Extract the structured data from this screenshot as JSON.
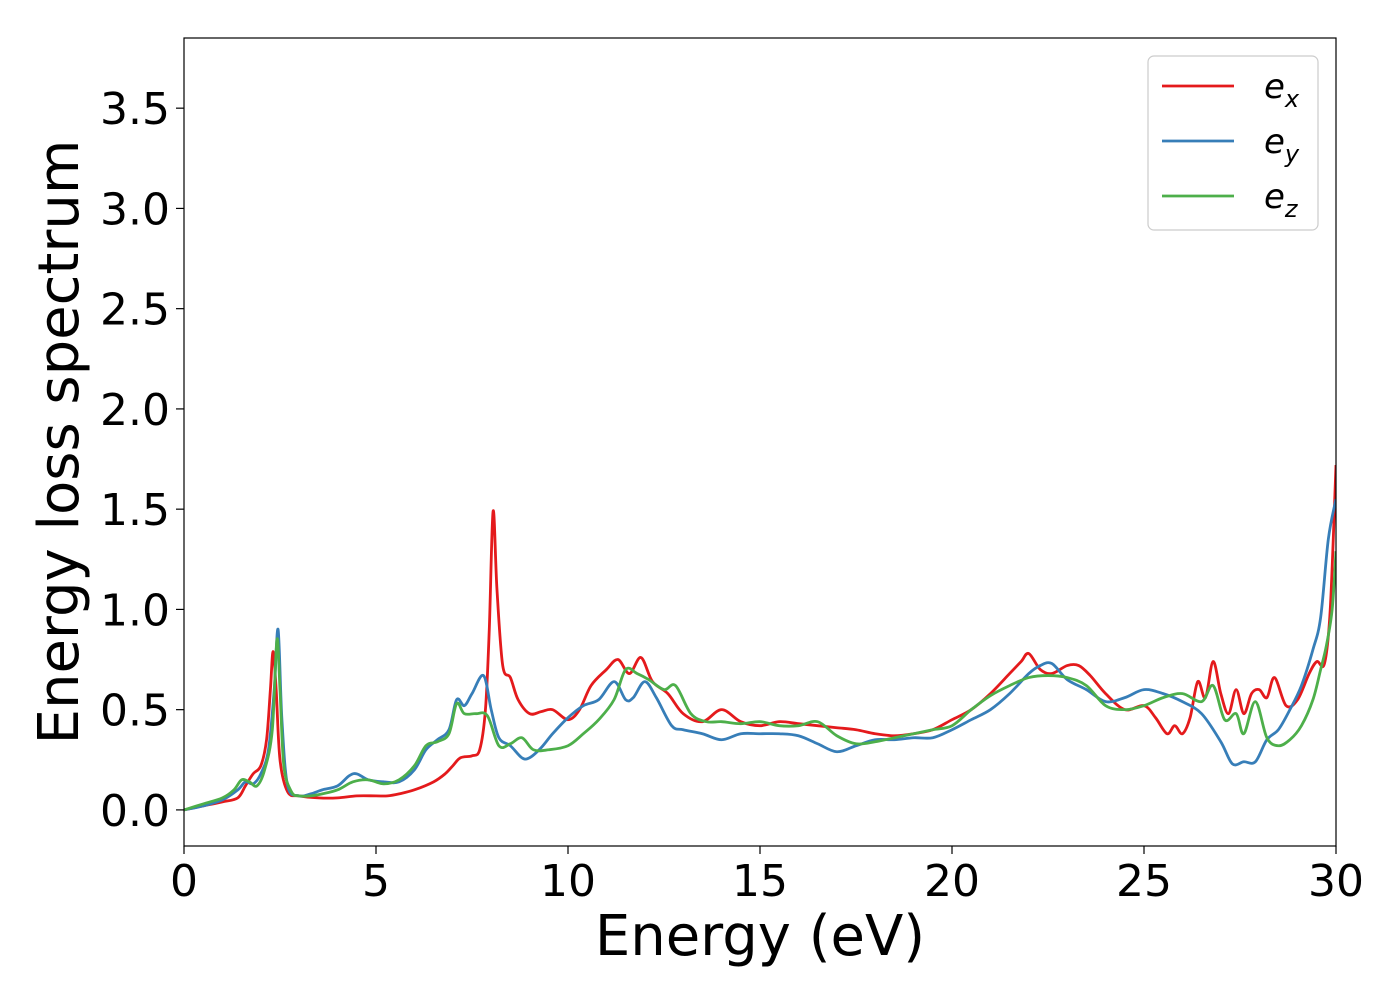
{
  "chart_data": {
    "type": "line",
    "xlabel": "Energy (eV)",
    "ylabel": "Energy loss spectrum",
    "xlim": [
      0,
      30
    ],
    "ylim": [
      -0.18,
      3.85
    ],
    "xticks": [
      0,
      5,
      10,
      15,
      20,
      25,
      30
    ],
    "xtick_labels": [
      "0",
      "5",
      "10",
      "15",
      "20",
      "25",
      "30"
    ],
    "yticks": [
      0.0,
      0.5,
      1.0,
      1.5,
      2.0,
      2.5,
      3.0,
      3.5
    ],
    "ytick_labels": [
      "0.0",
      "0.5",
      "1.0",
      "1.5",
      "2.0",
      "2.5",
      "3.0",
      "3.5"
    ],
    "grid": false,
    "legend_position": "top-right",
    "series": [
      {
        "name": "e_x",
        "legend_base": "e",
        "legend_sub": "x",
        "color": "#e41a1c",
        "x": [
          0,
          0.5,
          1.0,
          1.4,
          1.6,
          1.8,
          2.0,
          2.15,
          2.25,
          2.32,
          2.4,
          2.5,
          2.7,
          3.0,
          3.5,
          4.0,
          4.5,
          5.0,
          5.3,
          5.6,
          6.0,
          6.5,
          6.8,
          7.0,
          7.2,
          7.5,
          7.7,
          7.85,
          7.95,
          8.05,
          8.15,
          8.3,
          8.5,
          8.7,
          9.0,
          9.3,
          9.6,
          10.0,
          10.3,
          10.6,
          11.0,
          11.3,
          11.6,
          11.9,
          12.2,
          12.6,
          13.0,
          13.5,
          14.0,
          14.5,
          15.0,
          15.5,
          16.0,
          16.5,
          17.0,
          17.5,
          18.0,
          18.5,
          19.0,
          19.5,
          20.0,
          20.5,
          21.0,
          21.5,
          21.8,
          22.0,
          22.3,
          22.6,
          23.0,
          23.3,
          23.6,
          24.0,
          24.5,
          25.0,
          25.3,
          25.6,
          25.8,
          26.0,
          26.2,
          26.4,
          26.6,
          26.8,
          27.0,
          27.2,
          27.4,
          27.6,
          27.8,
          28.0,
          28.2,
          28.4,
          28.7,
          29.0,
          29.3,
          29.5,
          29.7,
          29.85,
          30.0
        ],
        "y": [
          0.0,
          0.02,
          0.04,
          0.06,
          0.12,
          0.18,
          0.22,
          0.35,
          0.6,
          0.79,
          0.6,
          0.25,
          0.09,
          0.07,
          0.06,
          0.06,
          0.07,
          0.07,
          0.07,
          0.08,
          0.1,
          0.14,
          0.18,
          0.22,
          0.26,
          0.27,
          0.3,
          0.5,
          0.9,
          1.49,
          1.1,
          0.72,
          0.66,
          0.55,
          0.48,
          0.49,
          0.5,
          0.45,
          0.5,
          0.62,
          0.7,
          0.75,
          0.68,
          0.76,
          0.64,
          0.58,
          0.48,
          0.44,
          0.5,
          0.44,
          0.42,
          0.44,
          0.43,
          0.42,
          0.41,
          0.4,
          0.38,
          0.37,
          0.38,
          0.4,
          0.45,
          0.5,
          0.58,
          0.68,
          0.74,
          0.78,
          0.7,
          0.68,
          0.72,
          0.72,
          0.67,
          0.58,
          0.5,
          0.52,
          0.46,
          0.38,
          0.42,
          0.38,
          0.46,
          0.64,
          0.56,
          0.74,
          0.58,
          0.48,
          0.6,
          0.48,
          0.58,
          0.6,
          0.56,
          0.66,
          0.52,
          0.55,
          0.68,
          0.74,
          0.73,
          1.0,
          1.72
        ]
      },
      {
        "name": "e_y",
        "legend_base": "e",
        "legend_sub": "y",
        "color": "#377eb8",
        "x": [
          0,
          0.5,
          1.0,
          1.4,
          1.6,
          1.8,
          2.0,
          2.2,
          2.35,
          2.45,
          2.55,
          2.7,
          3.0,
          3.3,
          3.6,
          4.0,
          4.3,
          4.5,
          4.8,
          5.2,
          5.6,
          6.0,
          6.3,
          6.6,
          6.9,
          7.1,
          7.3,
          7.5,
          7.8,
          8.0,
          8.2,
          8.5,
          8.8,
          9.0,
          9.3,
          9.6,
          10.0,
          10.4,
          10.8,
          11.2,
          11.5,
          11.7,
          12.0,
          12.3,
          12.7,
          13.0,
          13.5,
          14.0,
          14.5,
          15.0,
          15.5,
          16.0,
          16.5,
          17.0,
          17.5,
          18.0,
          18.5,
          19.0,
          19.5,
          20.0,
          20.5,
          21.0,
          21.5,
          22.0,
          22.3,
          22.6,
          23.0,
          23.5,
          24.0,
          24.5,
          25.0,
          25.5,
          26.0,
          26.5,
          27.0,
          27.3,
          27.6,
          27.9,
          28.2,
          28.5,
          28.8,
          29.1,
          29.4,
          29.6,
          29.8,
          30.0
        ],
        "y": [
          0.0,
          0.02,
          0.05,
          0.1,
          0.14,
          0.13,
          0.18,
          0.3,
          0.6,
          0.9,
          0.45,
          0.12,
          0.07,
          0.08,
          0.1,
          0.12,
          0.17,
          0.18,
          0.15,
          0.14,
          0.14,
          0.2,
          0.3,
          0.35,
          0.4,
          0.55,
          0.52,
          0.58,
          0.67,
          0.5,
          0.36,
          0.32,
          0.26,
          0.26,
          0.31,
          0.38,
          0.46,
          0.52,
          0.55,
          0.64,
          0.55,
          0.56,
          0.64,
          0.56,
          0.42,
          0.4,
          0.38,
          0.35,
          0.38,
          0.38,
          0.38,
          0.37,
          0.33,
          0.29,
          0.32,
          0.35,
          0.35,
          0.36,
          0.36,
          0.4,
          0.45,
          0.5,
          0.58,
          0.68,
          0.72,
          0.73,
          0.65,
          0.6,
          0.54,
          0.56,
          0.6,
          0.58,
          0.54,
          0.48,
          0.34,
          0.23,
          0.24,
          0.24,
          0.35,
          0.4,
          0.5,
          0.62,
          0.8,
          0.96,
          1.35,
          1.55
        ]
      },
      {
        "name": "e_z",
        "legend_base": "e",
        "legend_sub": "z",
        "color": "#4daf4a",
        "x": [
          0,
          0.5,
          1.0,
          1.3,
          1.5,
          1.7,
          1.9,
          2.1,
          2.3,
          2.42,
          2.5,
          2.6,
          2.8,
          3.0,
          3.3,
          3.6,
          4.0,
          4.4,
          4.8,
          5.2,
          5.6,
          6.0,
          6.3,
          6.6,
          6.9,
          7.1,
          7.3,
          7.6,
          7.9,
          8.2,
          8.5,
          8.8,
          9.1,
          9.5,
          10.0,
          10.4,
          10.8,
          11.2,
          11.5,
          11.8,
          12.1,
          12.5,
          12.8,
          13.2,
          13.6,
          14.0,
          14.5,
          15.0,
          15.5,
          16.0,
          16.5,
          17.0,
          17.5,
          18.0,
          18.5,
          19.0,
          19.5,
          20.0,
          20.5,
          21.0,
          21.5,
          22.0,
          22.5,
          23.0,
          23.5,
          24.0,
          24.5,
          25.0,
          25.5,
          26.0,
          26.5,
          26.8,
          27.1,
          27.4,
          27.6,
          27.9,
          28.2,
          28.5,
          28.8,
          29.1,
          29.4,
          29.6,
          29.75,
          29.9,
          30.0
        ],
        "y": [
          0.0,
          0.03,
          0.06,
          0.1,
          0.15,
          0.14,
          0.12,
          0.2,
          0.4,
          0.85,
          0.6,
          0.22,
          0.09,
          0.07,
          0.07,
          0.08,
          0.1,
          0.14,
          0.15,
          0.13,
          0.15,
          0.22,
          0.32,
          0.34,
          0.38,
          0.53,
          0.48,
          0.48,
          0.47,
          0.32,
          0.33,
          0.36,
          0.3,
          0.3,
          0.32,
          0.38,
          0.45,
          0.55,
          0.7,
          0.68,
          0.65,
          0.6,
          0.62,
          0.48,
          0.44,
          0.44,
          0.43,
          0.44,
          0.42,
          0.42,
          0.44,
          0.37,
          0.33,
          0.34,
          0.36,
          0.38,
          0.4,
          0.42,
          0.5,
          0.57,
          0.62,
          0.66,
          0.67,
          0.66,
          0.62,
          0.52,
          0.5,
          0.52,
          0.56,
          0.58,
          0.54,
          0.62,
          0.45,
          0.48,
          0.38,
          0.54,
          0.36,
          0.32,
          0.35,
          0.42,
          0.55,
          0.7,
          0.82,
          1.0,
          1.29
        ]
      }
    ]
  }
}
